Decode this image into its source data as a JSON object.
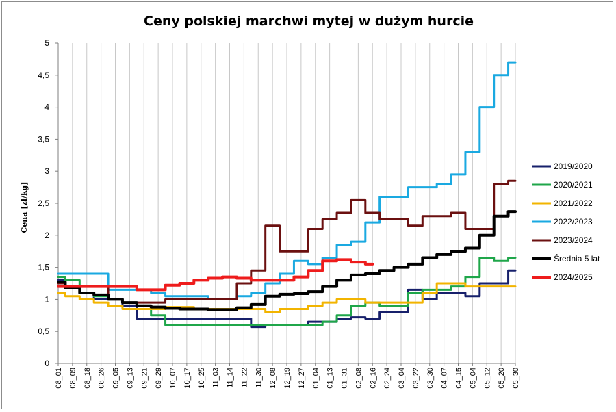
{
  "chart_data": {
    "type": "line",
    "title": "Ceny polskiej  marchwi mytej w dużym hurcie",
    "xlabel": "",
    "ylabel": "Cena [zł/kg]",
    "ylim": [
      0,
      5
    ],
    "y_ticks": [
      "0",
      "0,5",
      "1",
      "1,5",
      "2",
      "2,5",
      "3",
      "3,5",
      "4",
      "4,5",
      "5"
    ],
    "grid": "vertical",
    "legend": "right",
    "categories": [
      "08_01",
      "08_09",
      "08_18",
      "08_26",
      "09_05",
      "09_13",
      "09_21",
      "09_29",
      "10_07",
      "10_17",
      "10_25",
      "11_03",
      "11_14",
      "11_22",
      "11_30",
      "12_08",
      "12_19",
      "12_27",
      "01_04",
      "01_13",
      "01_31",
      "02_08",
      "02_16",
      "02_24",
      "03_04",
      "03_22",
      "03_30",
      "04_07",
      "04_15",
      "05_04",
      "05_12",
      "05_20",
      "05_30"
    ],
    "series": [
      {
        "name": "2019/2020",
        "color": "#17206b",
        "width": 3,
        "values": [
          1.3,
          1.2,
          1.1,
          1.0,
          1.0,
          0.9,
          0.7,
          0.7,
          0.7,
          0.7,
          0.7,
          0.7,
          0.7,
          0.7,
          0.57,
          0.6,
          0.6,
          0.6,
          0.65,
          0.65,
          0.7,
          0.72,
          0.7,
          0.8,
          0.8,
          1.15,
          1.0,
          1.1,
          1.1,
          1.05,
          1.25,
          1.25,
          1.45
        ]
      },
      {
        "name": "2020/2021",
        "color": "#1fa64a",
        "width": 3,
        "values": [
          1.35,
          1.3,
          1.1,
          1.05,
          1.0,
          0.95,
          0.9,
          0.75,
          0.6,
          0.6,
          0.6,
          0.6,
          0.6,
          0.6,
          0.6,
          0.6,
          0.6,
          0.6,
          0.6,
          0.65,
          0.75,
          0.9,
          0.95,
          0.9,
          0.9,
          1.1,
          1.15,
          1.15,
          1.2,
          1.35,
          1.65,
          1.6,
          1.65
        ]
      },
      {
        "name": "2021/2022",
        "color": "#f2b400",
        "width": 3,
        "values": [
          1.1,
          1.05,
          1.0,
          0.95,
          0.9,
          0.85,
          0.85,
          0.85,
          0.88,
          0.88,
          0.85,
          0.85,
          0.85,
          0.85,
          0.85,
          0.8,
          0.85,
          0.85,
          0.9,
          0.95,
          1.0,
          1.0,
          0.95,
          0.95,
          0.95,
          0.95,
          1.1,
          1.25,
          1.25,
          1.2,
          1.2,
          1.2,
          1.2
        ]
      },
      {
        "name": "2022/2023",
        "color": "#1aa9e1",
        "width": 3,
        "values": [
          1.4,
          1.4,
          1.4,
          1.4,
          1.15,
          1.15,
          1.15,
          1.1,
          1.05,
          1.05,
          1.05,
          1.0,
          1.0,
          1.05,
          1.1,
          1.25,
          1.4,
          1.6,
          1.55,
          1.65,
          1.85,
          1.9,
          2.2,
          2.6,
          2.6,
          2.75,
          2.75,
          2.8,
          2.95,
          3.3,
          4.0,
          4.5,
          4.7
        ]
      },
      {
        "name": "2023/2024",
        "color": "#6b1010",
        "width": 3,
        "values": [
          1.25,
          1.2,
          1.2,
          1.2,
          1.0,
          0.95,
          0.95,
          0.95,
          1.0,
          1.0,
          1.0,
          1.0,
          1.0,
          1.25,
          1.45,
          2.15,
          1.75,
          1.75,
          2.1,
          2.25,
          2.35,
          2.55,
          2.35,
          2.25,
          2.25,
          2.15,
          2.3,
          2.3,
          2.35,
          2.1,
          2.1,
          2.8,
          2.85
        ]
      },
      {
        "name": "Średnia 5 lat",
        "color": "#000000",
        "width": 4,
        "values": [
          1.27,
          1.18,
          1.1,
          1.07,
          1.0,
          0.95,
          0.9,
          0.88,
          0.86,
          0.85,
          0.85,
          0.84,
          0.84,
          0.87,
          0.92,
          1.05,
          1.08,
          1.09,
          1.12,
          1.2,
          1.3,
          1.38,
          1.4,
          1.45,
          1.5,
          1.55,
          1.65,
          1.7,
          1.75,
          1.8,
          2.0,
          2.3,
          2.37
        ]
      },
      {
        "name": "2024/2025",
        "color": "#ee1c1c",
        "width": 4,
        "values": [
          1.2,
          1.2,
          1.2,
          1.2,
          1.2,
          1.2,
          1.15,
          1.15,
          1.22,
          1.25,
          1.3,
          1.33,
          1.35,
          1.33,
          1.3,
          1.3,
          1.3,
          1.35,
          1.45,
          1.6,
          1.62,
          1.58,
          1.55,
          null,
          null,
          null,
          null,
          null,
          null,
          null,
          null,
          null,
          null
        ]
      }
    ]
  }
}
